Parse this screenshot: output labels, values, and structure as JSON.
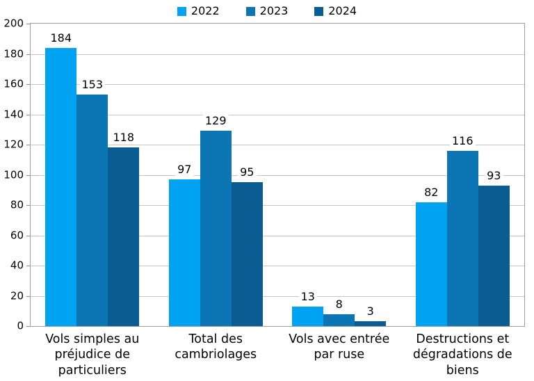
{
  "chart_data": {
    "type": "bar",
    "title": "",
    "categories": [
      "Vols simples au\npréjudice de\nparticuliers",
      "Total des\ncambriolages",
      "Vols avec entrée\npar ruse",
      "Destructions et\ndégradations de\nbiens"
    ],
    "series": [
      {
        "name": "2022",
        "color": "#00a2f2",
        "values": [
          184,
          97,
          13,
          82
        ]
      },
      {
        "name": "2023",
        "color": "#0c76b4",
        "values": [
          153,
          129,
          8,
          116
        ]
      },
      {
        "name": "2024",
        "color": "#0a5d92",
        "values": [
          118,
          95,
          3,
          93
        ]
      }
    ],
    "ylim": [
      0,
      200
    ],
    "ytick_step": 20,
    "grid": true,
    "legend_position": "top",
    "value_labels_shown": true
  },
  "colors": {
    "background": "#ffffff",
    "gridline": "#c6c6c6",
    "plot_border": "#9e9e9e",
    "tick": "#8c8c8c",
    "text": "#000000"
  }
}
